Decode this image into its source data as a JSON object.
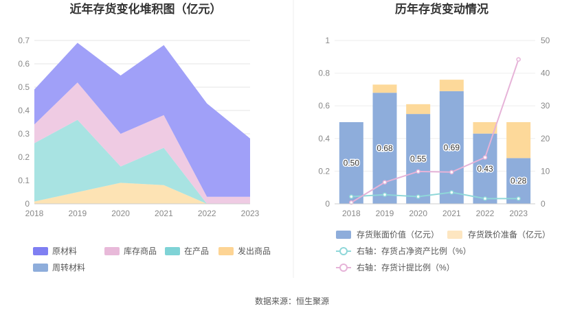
{
  "footer": {
    "source": "数据来源：恒生聚源"
  },
  "chart_data": [
    {
      "type": "area",
      "stacked": true,
      "title": "近年存货变化堆积图（亿元）",
      "x": [
        "2018",
        "2019",
        "2020",
        "2021",
        "2022",
        "2023"
      ],
      "ylim": [
        0,
        0.7
      ],
      "yticks": [
        "0",
        "0.1",
        "0.2",
        "0.3",
        "0.4",
        "0.5",
        "0.6",
        "0.7"
      ],
      "grid": true,
      "legend_position": "bottom",
      "series": [
        {
          "name": "发出商品",
          "color": "#fde3b4",
          "values": [
            0.01,
            0.05,
            0.09,
            0.08,
            0.0,
            0.0
          ]
        },
        {
          "name": "在产品",
          "color": "#a8e3e2",
          "values": [
            0.25,
            0.31,
            0.07,
            0.16,
            0.0,
            0.0
          ]
        },
        {
          "name": "库存商品",
          "color": "#efcbe3",
          "values": [
            0.08,
            0.16,
            0.14,
            0.14,
            0.03,
            0.03
          ]
        },
        {
          "name": "原材料",
          "color": "#a0a0f8",
          "values": [
            0.15,
            0.17,
            0.25,
            0.3,
            0.4,
            0.25
          ]
        },
        {
          "name": "周转材料",
          "color": "#8eaddb",
          "values": [
            0,
            0,
            0,
            0,
            0,
            0
          ]
        }
      ],
      "legend": [
        {
          "name": "原材料",
          "color": "#7f7ff2"
        },
        {
          "name": "库存商品",
          "color": "#e8b9d9"
        },
        {
          "name": "在产品",
          "color": "#7fd3d6"
        },
        {
          "name": "发出商品",
          "color": "#fdd494"
        },
        {
          "name": "周转材料",
          "color": "#8eaddb"
        }
      ]
    },
    {
      "type": "bar",
      "title": "历年存货变动情况",
      "categories": [
        "2018",
        "2019",
        "2020",
        "2021",
        "2022",
        "2023"
      ],
      "ylim": [
        0,
        1
      ],
      "yticks": [
        "0",
        "0.2",
        "0.4",
        "0.6",
        "0.8",
        "1"
      ],
      "y2lim": [
        0,
        50
      ],
      "y2ticks": [
        "0",
        "10",
        "20",
        "30",
        "40",
        "50"
      ],
      "legend_position": "bottom",
      "series": [
        {
          "name": "存货账面价值（亿元）",
          "kind": "bar",
          "axis": "left",
          "color": "#8eaddb",
          "values": [
            0.5,
            0.68,
            0.55,
            0.69,
            0.43,
            0.28
          ],
          "labels": [
            "0.50",
            "0.68",
            "0.55",
            "0.69",
            "0.43",
            "0.28"
          ]
        },
        {
          "name": "存货跌价准备（亿元）",
          "kind": "bar-stacked",
          "axis": "left",
          "color": "#fdd99a",
          "legend_color": "#fde6c1",
          "values": [
            0.0,
            0.05,
            0.06,
            0.07,
            0.07,
            0.22
          ]
        },
        {
          "name": "右轴：存货占净资产比例（%）",
          "kind": "line",
          "axis": "right",
          "color": "#8fd7d9",
          "values": [
            2.2,
            2.8,
            2.2,
            3.5,
            1.6,
            1.6
          ]
        },
        {
          "name": "右轴：存货计提比例（%）",
          "kind": "line",
          "axis": "right",
          "color": "#e6b3d8",
          "values": [
            0.4,
            6.6,
            9.9,
            9.7,
            14.2,
            44.2
          ]
        }
      ]
    }
  ]
}
